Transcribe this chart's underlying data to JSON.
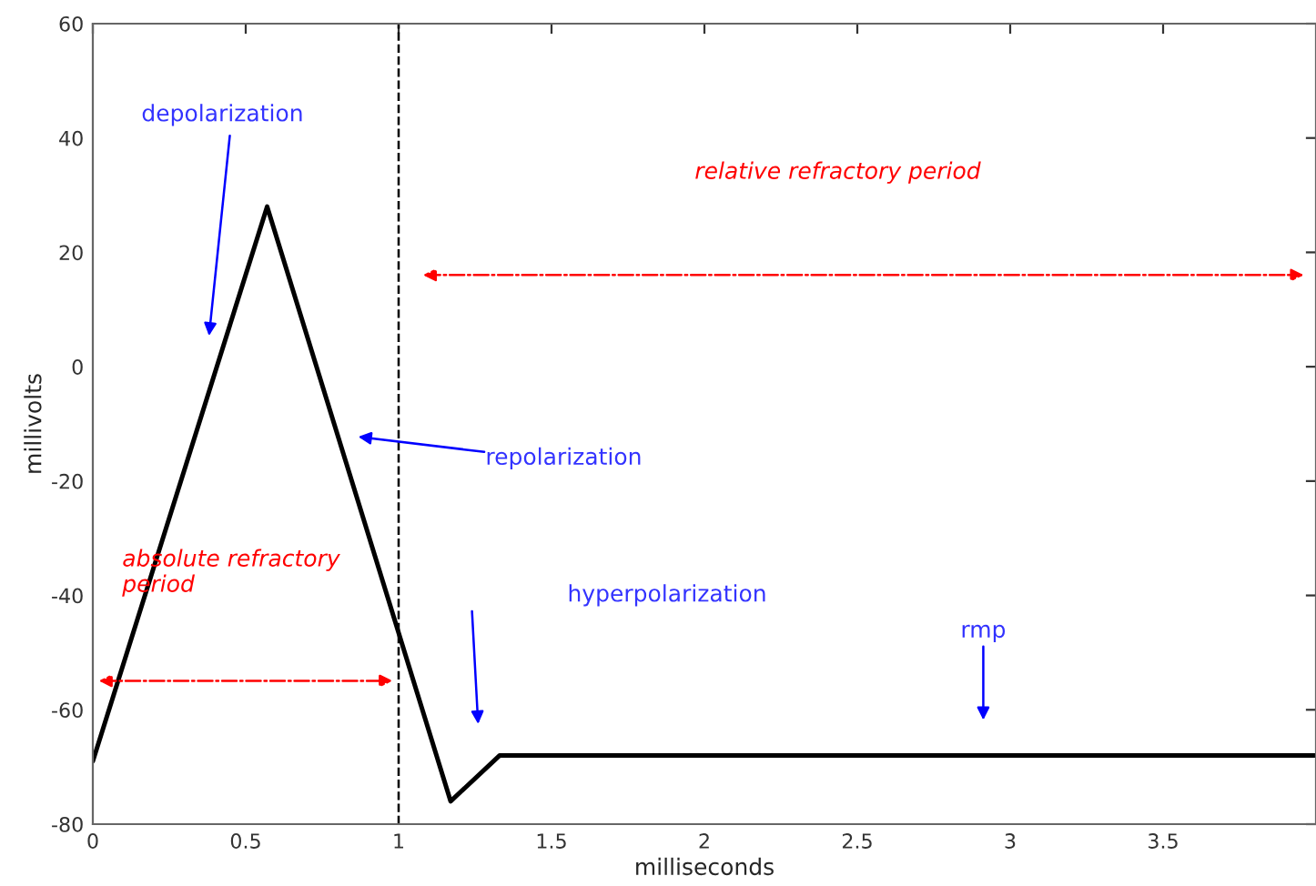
{
  "chart_data": {
    "type": "line",
    "xlabel": "milliseconds",
    "ylabel": "millivolts",
    "x": [
      0,
      0.57,
      1.17,
      1.33,
      4
    ],
    "series": [
      {
        "color": "#000000",
        "values": [
          -69,
          28,
          -76,
          -68,
          -68
        ]
      }
    ],
    "xlim": [
      0,
      4
    ],
    "ylim": [
      -80,
      60
    ],
    "xticks": [
      0,
      0.5,
      1,
      1.5,
      2,
      2.5,
      3,
      3.5
    ],
    "yticks": [
      -80,
      -60,
      -40,
      -20,
      0,
      20,
      40,
      60
    ],
    "ref_lines": [
      {
        "axis": "x",
        "value": 1,
        "color": "#000000",
        "line_style": "dashed"
      }
    ],
    "annotations": [
      "depolarization",
      "repolarization",
      "absolute refractory period",
      "hyperpolarization",
      "rmp",
      "relative refractory period"
    ],
    "grid": false
  }
}
